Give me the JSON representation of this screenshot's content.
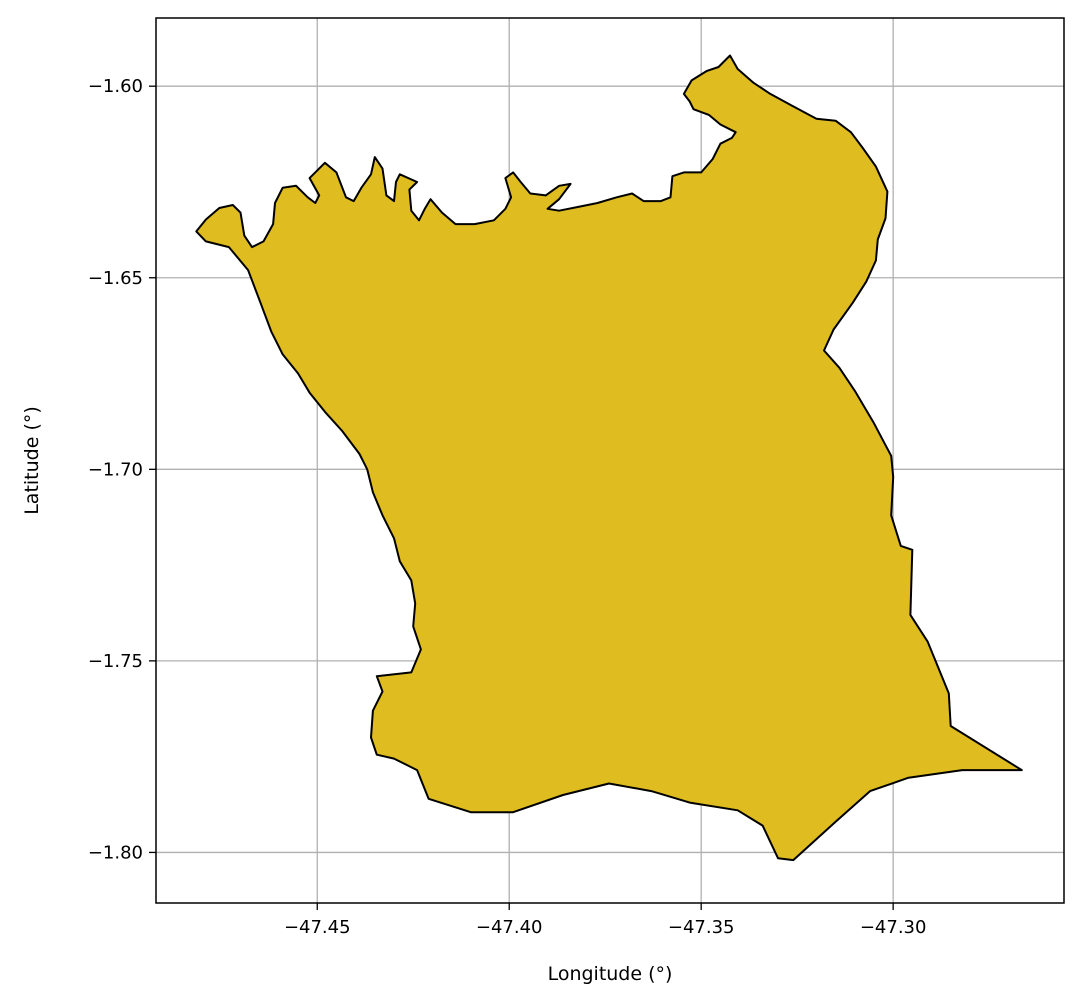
{
  "map": {
    "xlabel": "Longitude (°)",
    "ylabel": "Latitude (°)",
    "xlim": [
      -47.492,
      -47.2555
    ],
    "ylim": [
      -1.8132,
      -1.5822
    ],
    "x_ticks": [
      -47.45,
      -47.4,
      -47.35,
      -47.3
    ],
    "x_tick_labels": [
      "−47.45",
      "−47.40",
      "−47.35",
      "−47.30"
    ],
    "y_ticks": [
      -1.6,
      -1.65,
      -1.7,
      -1.75,
      -1.8
    ],
    "y_tick_labels": [
      "−1.60",
      "−1.65",
      "−1.70",
      "−1.75",
      "−1.80"
    ],
    "grid": true,
    "region_fill_color": "#dfbc20",
    "region_edge_color": "#000000",
    "region_outline": [
      [
        -47.4815,
        -1.6379
      ],
      [
        -47.479,
        -1.6348
      ],
      [
        -47.4755,
        -1.6318
      ],
      [
        -47.472,
        -1.631
      ],
      [
        -47.47,
        -1.633
      ],
      [
        -47.469,
        -1.639
      ],
      [
        -47.467,
        -1.642
      ],
      [
        -47.464,
        -1.6405
      ],
      [
        -47.4615,
        -1.636
      ],
      [
        -47.461,
        -1.6305
      ],
      [
        -47.459,
        -1.6265
      ],
      [
        -47.4555,
        -1.626
      ],
      [
        -47.4525,
        -1.629
      ],
      [
        -47.4505,
        -1.6305
      ],
      [
        -47.4495,
        -1.6285
      ],
      [
        -47.452,
        -1.624
      ],
      [
        -47.448,
        -1.62
      ],
      [
        -47.445,
        -1.6225
      ],
      [
        -47.4425,
        -1.629
      ],
      [
        -47.4405,
        -1.63
      ],
      [
        -47.4385,
        -1.6265
      ],
      [
        -47.436,
        -1.623
      ],
      [
        -47.435,
        -1.6185
      ],
      [
        -47.433,
        -1.6215
      ],
      [
        -47.432,
        -1.6285
      ],
      [
        -47.43,
        -1.63
      ],
      [
        -47.4295,
        -1.625
      ],
      [
        -47.4285,
        -1.623
      ],
      [
        -47.424,
        -1.625
      ],
      [
        -47.426,
        -1.627
      ],
      [
        -47.4255,
        -1.6325
      ],
      [
        -47.4235,
        -1.635
      ],
      [
        -47.422,
        -1.632
      ],
      [
        -47.4205,
        -1.6295
      ],
      [
        -47.4175,
        -1.633
      ],
      [
        -47.414,
        -1.636
      ],
      [
        -47.409,
        -1.636
      ],
      [
        -47.404,
        -1.635
      ],
      [
        -47.401,
        -1.632
      ],
      [
        -47.3995,
        -1.629
      ],
      [
        -47.401,
        -1.624
      ],
      [
        -47.399,
        -1.6225
      ],
      [
        -47.397,
        -1.625
      ],
      [
        -47.3945,
        -1.628
      ],
      [
        -47.3905,
        -1.6285
      ],
      [
        -47.387,
        -1.626
      ],
      [
        -47.384,
        -1.6255
      ],
      [
        -47.387,
        -1.6295
      ],
      [
        -47.39,
        -1.632
      ],
      [
        -47.387,
        -1.6325
      ],
      [
        -47.382,
        -1.6315
      ],
      [
        -47.377,
        -1.6305
      ],
      [
        -47.372,
        -1.629
      ],
      [
        -47.368,
        -1.628
      ],
      [
        -47.365,
        -1.63
      ],
      [
        -47.3605,
        -1.63
      ],
      [
        -47.358,
        -1.629
      ],
      [
        -47.3575,
        -1.6235
      ],
      [
        -47.3545,
        -1.6225
      ],
      [
        -47.35,
        -1.6225
      ],
      [
        -47.347,
        -1.619
      ],
      [
        -47.345,
        -1.615
      ],
      [
        -47.342,
        -1.6135
      ],
      [
        -47.341,
        -1.612
      ],
      [
        -47.345,
        -1.61
      ],
      [
        -47.348,
        -1.6075
      ],
      [
        -47.352,
        -1.606
      ],
      [
        -47.353,
        -1.604
      ],
      [
        -47.3545,
        -1.602
      ],
      [
        -47.3525,
        -1.5985
      ],
      [
        -47.3485,
        -1.596
      ],
      [
        -47.3455,
        -1.595
      ],
      [
        -47.3425,
        -1.592
      ],
      [
        -47.3405,
        -1.5955
      ],
      [
        -47.3365,
        -1.599
      ],
      [
        -47.332,
        -1.602
      ],
      [
        -47.3265,
        -1.605
      ],
      [
        -47.32,
        -1.6085
      ],
      [
        -47.315,
        -1.609
      ],
      [
        -47.311,
        -1.612
      ],
      [
        -47.308,
        -1.616
      ],
      [
        -47.3045,
        -1.621
      ],
      [
        -47.3015,
        -1.6275
      ],
      [
        -47.302,
        -1.6345
      ],
      [
        -47.304,
        -1.64
      ],
      [
        -47.3045,
        -1.6455
      ],
      [
        -47.307,
        -1.651
      ],
      [
        -47.3105,
        -1.6565
      ],
      [
        -47.3155,
        -1.6635
      ],
      [
        -47.318,
        -1.669
      ],
      [
        -47.314,
        -1.6735
      ],
      [
        -47.31,
        -1.6795
      ],
      [
        -47.305,
        -1.688
      ],
      [
        -47.3005,
        -1.6965
      ],
      [
        -47.3,
        -1.702
      ],
      [
        -47.3005,
        -1.712
      ],
      [
        -47.298,
        -1.72
      ],
      [
        -47.295,
        -1.721
      ],
      [
        -47.2955,
        -1.738
      ],
      [
        -47.291,
        -1.745
      ],
      [
        -47.2855,
        -1.7585
      ],
      [
        -47.285,
        -1.767
      ],
      [
        -47.2665,
        -1.7785
      ],
      [
        -47.282,
        -1.7785
      ],
      [
        -47.296,
        -1.7805
      ],
      [
        -47.306,
        -1.784
      ],
      [
        -47.315,
        -1.792
      ],
      [
        -47.326,
        -1.802
      ],
      [
        -47.33,
        -1.8015
      ],
      [
        -47.334,
        -1.793
      ],
      [
        -47.3405,
        -1.789
      ],
      [
        -47.353,
        -1.787
      ],
      [
        -47.363,
        -1.784
      ],
      [
        -47.374,
        -1.782
      ],
      [
        -47.386,
        -1.785
      ],
      [
        -47.399,
        -1.7895
      ],
      [
        -47.41,
        -1.7895
      ],
      [
        -47.421,
        -1.786
      ],
      [
        -47.424,
        -1.7785
      ],
      [
        -47.43,
        -1.7755
      ],
      [
        -47.4345,
        -1.7745
      ],
      [
        -47.436,
        -1.77
      ],
      [
        -47.4355,
        -1.763
      ],
      [
        -47.433,
        -1.758
      ],
      [
        -47.4345,
        -1.754
      ],
      [
        -47.4255,
        -1.753
      ],
      [
        -47.423,
        -1.747
      ],
      [
        -47.425,
        -1.741
      ],
      [
        -47.4245,
        -1.735
      ],
      [
        -47.4255,
        -1.729
      ],
      [
        -47.4285,
        -1.724
      ],
      [
        -47.43,
        -1.718
      ],
      [
        -47.433,
        -1.712
      ],
      [
        -47.4355,
        -1.706
      ],
      [
        -47.437,
        -1.7
      ],
      [
        -47.439,
        -1.696
      ],
      [
        -47.4435,
        -1.69
      ],
      [
        -47.448,
        -1.685
      ],
      [
        -47.452,
        -1.68
      ],
      [
        -47.455,
        -1.675
      ],
      [
        -47.459,
        -1.67
      ],
      [
        -47.462,
        -1.664
      ],
      [
        -47.465,
        -1.656
      ],
      [
        -47.468,
        -1.648
      ],
      [
        -47.473,
        -1.642
      ],
      [
        -47.479,
        -1.6405
      ],
      [
        -47.4815,
        -1.6379
      ]
    ]
  }
}
